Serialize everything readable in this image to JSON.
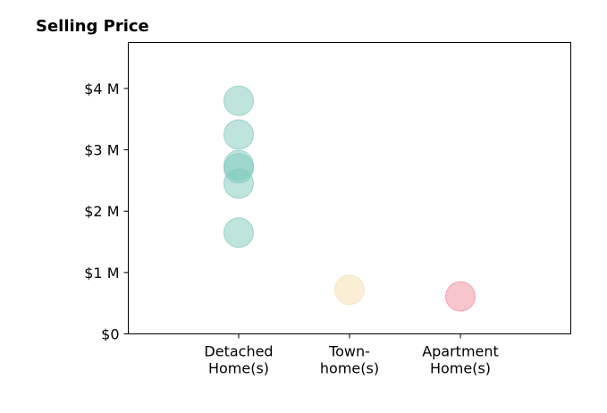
{
  "chart_data": {
    "type": "scatter",
    "title": "Selling Price",
    "xlabel": "",
    "ylabel": "",
    "ylim": [
      0,
      4.75
    ],
    "yticks": [
      {
        "value": 0,
        "label": "$0"
      },
      {
        "value": 1,
        "label": "$1 M"
      },
      {
        "value": 2,
        "label": "$2 M"
      },
      {
        "value": 3,
        "label": "$3 M"
      },
      {
        "value": 4,
        "label": "$4 M"
      }
    ],
    "categories": [
      {
        "lines": [
          "Detached",
          "Home(s)"
        ],
        "color": "#7fc9bd"
      },
      {
        "lines": [
          "Town-",
          "home(s)"
        ],
        "color": "#f5deb0"
      },
      {
        "lines": [
          "Apartment",
          "Home(s)"
        ],
        "color": "#f08c9a"
      }
    ],
    "points": [
      {
        "category": 0,
        "value": 3.8
      },
      {
        "category": 0,
        "value": 3.25
      },
      {
        "category": 0,
        "value": 2.75
      },
      {
        "category": 0,
        "value": 2.7
      },
      {
        "category": 0,
        "value": 2.45
      },
      {
        "category": 0,
        "value": 1.65
      },
      {
        "category": 1,
        "value": 0.72
      },
      {
        "category": 2,
        "value": 0.61
      }
    ],
    "grid": false,
    "legend": "none"
  }
}
